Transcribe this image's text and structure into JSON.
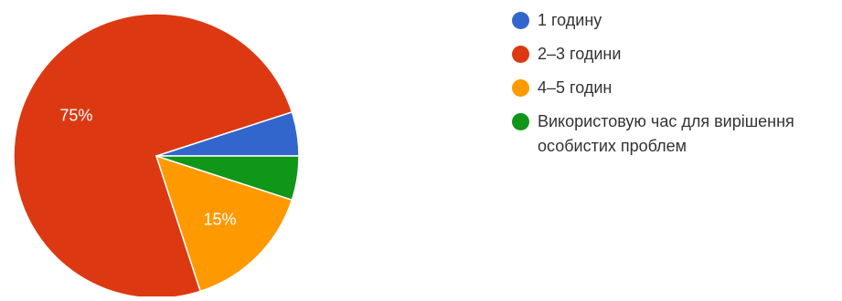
{
  "chart_data": {
    "type": "pie",
    "categories": [
      "1 годину",
      "2–3 години",
      "4–5 годин",
      "Використовую час для вирішення особистих проблем"
    ],
    "values": [
      5,
      75,
      15,
      5
    ],
    "colors": [
      "#3366cc",
      "#dc3912",
      "#ff9900",
      "#109618"
    ],
    "data_labels": [
      "",
      "75%",
      "15%",
      ""
    ],
    "legend_position": "right"
  },
  "legend": {
    "items": [
      {
        "label": "1 годину",
        "color": "#3366cc"
      },
      {
        "label": "2–3 години",
        "color": "#dc3912"
      },
      {
        "label": "4–5 годин",
        "color": "#ff9900"
      },
      {
        "label": "Використовую час для вирішення особистих проблем",
        "color": "#109618"
      }
    ]
  }
}
